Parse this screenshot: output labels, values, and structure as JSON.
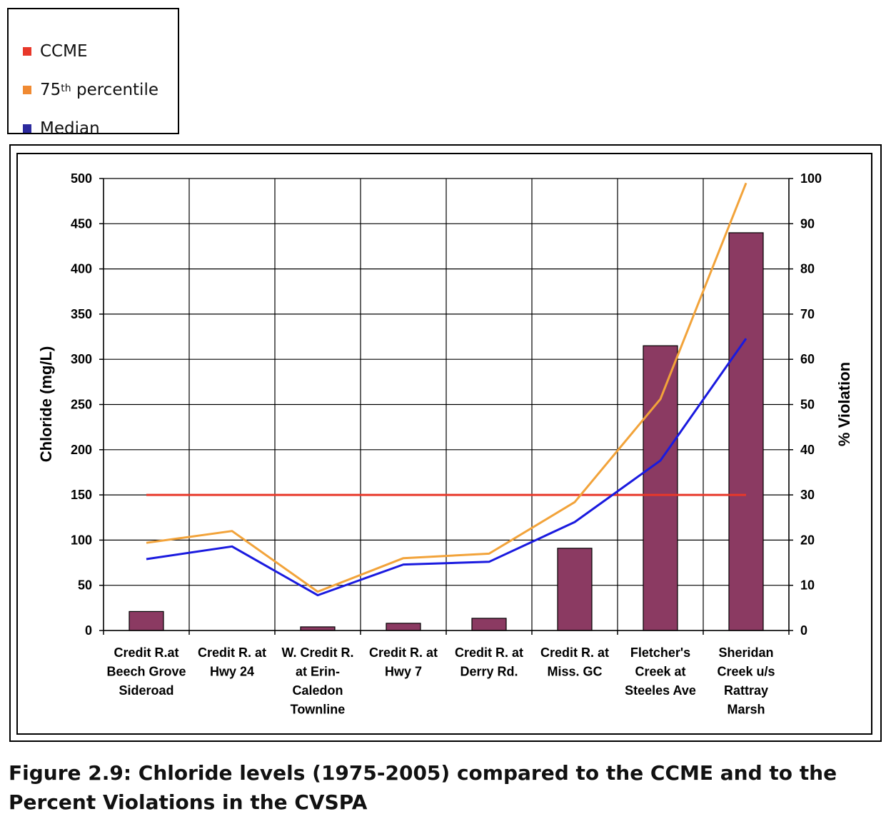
{
  "legend": {
    "items": [
      {
        "label": "CCME",
        "sup": "",
        "color": "#e8382a"
      },
      {
        "label": "75",
        "sup": "th",
        "suffix": " percentile",
        "color": "#f08a32"
      },
      {
        "label": "Median",
        "sup": "",
        "color": "#2c2a9e"
      }
    ]
  },
  "caption": {
    "text": "Figure 2.9:  Chloride levels (1975-2005) compared to the CCME and to the Percent Violations in the CVSPA"
  },
  "chart_data": {
    "type": "bar",
    "categories": [
      [
        "Credit R.at",
        "Beech Grove",
        "Sideroad"
      ],
      [
        "Credit R. at",
        "Hwy 24"
      ],
      [
        "W. Credit R.",
        "at Erin-",
        "Caledon",
        "Townline"
      ],
      [
        "Credit R. at",
        "Hwy 7"
      ],
      [
        "Credit R. at",
        "Derry Rd."
      ],
      [
        "Credit R. at",
        "Miss. GC"
      ],
      [
        "Fletcher's",
        "Creek at",
        "Steeles Ave"
      ],
      [
        "Sheridan",
        "Creek u/s",
        "Rattray",
        "Marsh"
      ]
    ],
    "ylabel": "Chloride (mg/L)",
    "y2label": "% Violation",
    "ylim": [
      0,
      500
    ],
    "y2lim": [
      0,
      100
    ],
    "yticks": [
      0,
      50,
      100,
      150,
      200,
      250,
      300,
      350,
      400,
      450,
      500
    ],
    "y2ticks": [
      0,
      10,
      20,
      30,
      40,
      50,
      60,
      70,
      80,
      90,
      100
    ],
    "grid": true,
    "bar_series": {
      "axis": "y2",
      "color": "#8b3a62",
      "values": [
        4.2,
        0,
        0.8,
        1.6,
        2.7,
        18.2,
        63,
        88
      ]
    },
    "line_series": [
      {
        "name": "CCME",
        "color": "#e8382a",
        "values": [
          150,
          150,
          150,
          150,
          150,
          150,
          150,
          150
        ]
      },
      {
        "name": "75th percentile",
        "color": "#f2a33a",
        "values": [
          97,
          110,
          43,
          80,
          85,
          142,
          256,
          495
        ]
      },
      {
        "name": "Median",
        "color": "#1a1adf",
        "values": [
          79,
          93,
          39,
          73,
          76,
          120,
          188,
          323
        ]
      }
    ]
  }
}
